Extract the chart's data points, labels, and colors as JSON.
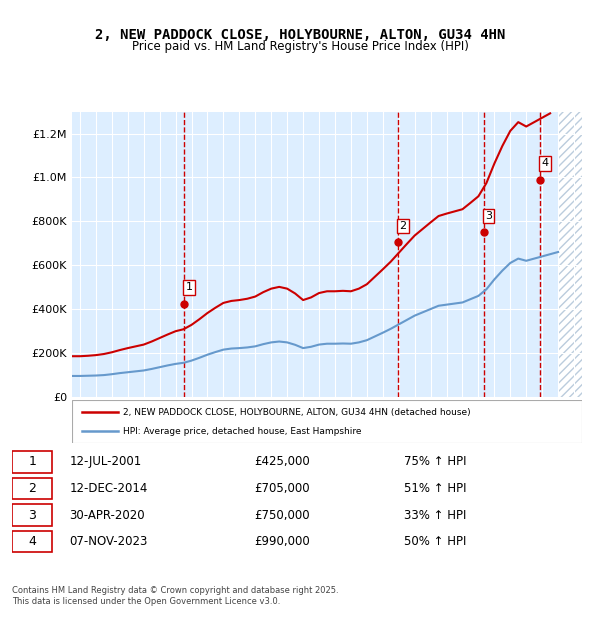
{
  "title_line1": "2, NEW PADDOCK CLOSE, HOLYBOURNE, ALTON, GU34 4HN",
  "title_line2": "Price paid vs. HM Land Registry's House Price Index (HPI)",
  "legend_line1": "2, NEW PADDOCK CLOSE, HOLYBOURNE, ALTON, GU34 4HN (detached house)",
  "legend_line2": "HPI: Average price, detached house, East Hampshire",
  "footer": "Contains HM Land Registry data © Crown copyright and database right 2025.\nThis data is licensed under the Open Government Licence v3.0.",
  "sale_color": "#cc0000",
  "hpi_color": "#6699cc",
  "background_color": "#ddeeff",
  "hatch_color": "#bbccdd",
  "sale_points": [
    {
      "year": 2001.53,
      "value": 425000,
      "label": "1"
    },
    {
      "year": 2014.95,
      "value": 705000,
      "label": "2"
    },
    {
      "year": 2020.33,
      "value": 750000,
      "label": "3"
    },
    {
      "year": 2023.85,
      "value": 990000,
      "label": "4"
    }
  ],
  "sale_vlines": [
    2001.53,
    2014.95,
    2020.33,
    2023.85
  ],
  "table_rows": [
    {
      "num": "1",
      "date": "12-JUL-2001",
      "price": "£425,000",
      "change": "75% ↑ HPI"
    },
    {
      "num": "2",
      "date": "12-DEC-2014",
      "price": "£705,000",
      "change": "51% ↑ HPI"
    },
    {
      "num": "3",
      "date": "30-APR-2020",
      "price": "£750,000",
      "change": "33% ↑ HPI"
    },
    {
      "num": "4",
      "date": "07-NOV-2023",
      "price": "£990,000",
      "change": "50% ↑ HPI"
    }
  ],
  "ylim": [
    0,
    1300000
  ],
  "yticks": [
    0,
    200000,
    400000,
    600000,
    800000,
    1000000,
    1200000
  ],
  "xlim_start": 1994.5,
  "xlim_end": 2026.5,
  "hpi_data": {
    "years": [
      1994.5,
      1995,
      1995.5,
      1996,
      1996.5,
      1997,
      1997.5,
      1998,
      1998.5,
      1999,
      1999.5,
      2000,
      2000.5,
      2001,
      2001.5,
      2002,
      2002.5,
      2003,
      2003.5,
      2004,
      2004.5,
      2005,
      2005.5,
      2006,
      2006.5,
      2007,
      2007.5,
      2008,
      2008.5,
      2009,
      2009.5,
      2010,
      2010.5,
      2011,
      2011.5,
      2012,
      2012.5,
      2013,
      2013.5,
      2014,
      2014.5,
      2015,
      2015.5,
      2016,
      2016.5,
      2017,
      2017.5,
      2018,
      2018.5,
      2019,
      2019.5,
      2020,
      2020.5,
      2021,
      2021.5,
      2022,
      2022.5,
      2023,
      2023.5,
      2024,
      2024.5,
      2025
    ],
    "values": [
      95000,
      95000,
      96000,
      97000,
      99000,
      103000,
      108000,
      112000,
      116000,
      120000,
      127000,
      135000,
      143000,
      150000,
      155000,
      165000,
      178000,
      192000,
      204000,
      215000,
      220000,
      222000,
      225000,
      230000,
      240000,
      248000,
      252000,
      248000,
      237000,
      222000,
      228000,
      238000,
      242000,
      242000,
      243000,
      242000,
      248000,
      258000,
      275000,
      292000,
      310000,
      330000,
      350000,
      370000,
      385000,
      400000,
      415000,
      420000,
      425000,
      430000,
      445000,
      460000,
      490000,
      535000,
      575000,
      610000,
      630000,
      620000,
      630000,
      640000,
      650000,
      660000
    ],
    "sale_indexed": {
      "years": [
        1994.5,
        1995,
        1995.5,
        1996,
        1996.5,
        1997,
        1997.5,
        1998,
        1998.5,
        1999,
        1999.5,
        2000,
        2000.5,
        2001,
        2001.5,
        2002,
        2002.5,
        2003,
        2003.5,
        2004,
        2004.5,
        2005,
        2005.5,
        2006,
        2006.5,
        2007,
        2007.5,
        2008,
        2008.5,
        2009,
        2009.5,
        2010,
        2010.5,
        2011,
        2011.5,
        2012,
        2012.5,
        2013,
        2013.5,
        2014,
        2014.5,
        2015,
        2015.5,
        2016,
        2016.5,
        2017,
        2017.5,
        2018,
        2018.5,
        2019,
        2019.5,
        2020,
        2020.5,
        2021,
        2021.5,
        2022,
        2022.5,
        2023,
        2023.5,
        2024,
        2024.5
      ],
      "values": [
        185000,
        185000,
        187000,
        190000,
        195000,
        203000,
        213000,
        222000,
        230000,
        238000,
        252000,
        268000,
        284000,
        299000,
        308000,
        328000,
        354000,
        382000,
        406000,
        428000,
        437000,
        441000,
        447000,
        457000,
        477000,
        493000,
        501000,
        493000,
        471000,
        441000,
        453000,
        473000,
        481000,
        481000,
        483000,
        481000,
        493000,
        513000,
        547000,
        581000,
        616000,
        656000,
        696000,
        735000,
        765000,
        795000,
        824000,
        835000,
        845000,
        855000,
        884000,
        914000,
        974000,
        1063000,
        1143000,
        1212000,
        1252000,
        1232000,
        1252000,
        1272000,
        1292000
      ]
    }
  }
}
